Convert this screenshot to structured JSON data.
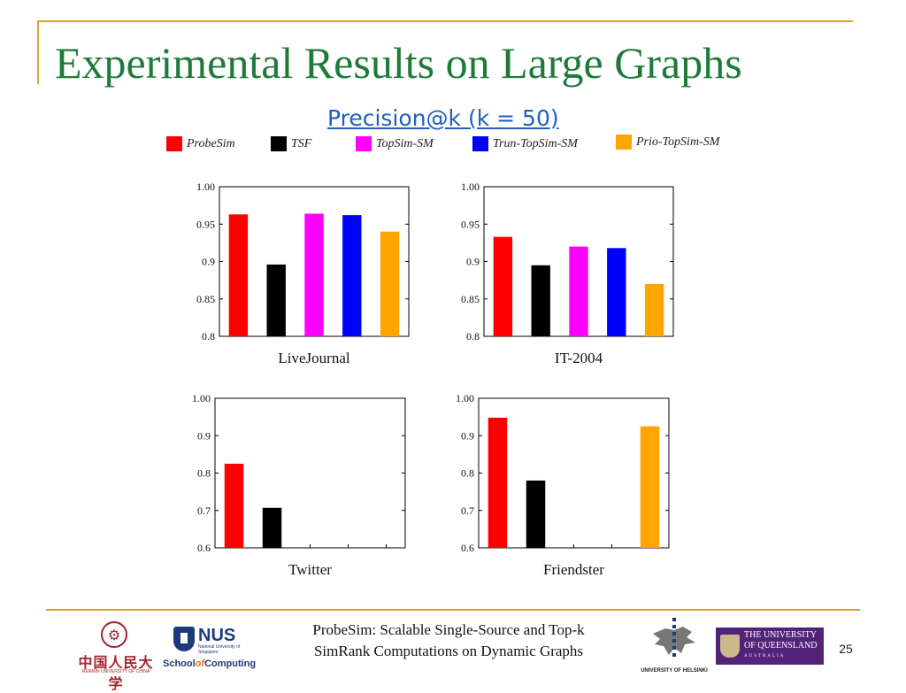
{
  "slide": {
    "title": "Experimental Results on Large Graphs",
    "subtitle": "Precision@k (k = 50)",
    "footer_line1": "ProbeSim: Scalable Single-Source and Top-k",
    "footer_line2": "SimRank Computations on Dynamic Graphs",
    "slide_number": "25"
  },
  "logos": {
    "renmin_cn": "中国人民大学",
    "renmin_en": "RENMIN UNIVERSITY OF CHINA",
    "nus_word": "NUS",
    "nus_small": "National University of Singapore",
    "nus_school_a": "School",
    "nus_school_of": "of",
    "nus_school_b": "Computing",
    "helsinki_caption": "UNIVERSITY OF HELSINKI",
    "uq_line1": "THE UNIVERSITY",
    "uq_line2": "OF QUEENSLAND",
    "uq_line3": "AUSTRALIA"
  },
  "colors": {
    "title": "#1f7a3a",
    "subtitle": "#1f5fbf",
    "gold_rule": "#d4a72c"
  },
  "chart_data": [
    {
      "type": "bar",
      "title": "LiveJournal",
      "categories": [
        "ProbeSim",
        "TSF",
        "TopSim-SM",
        "Trun-TopSim-SM",
        "Prio-TopSim-SM"
      ],
      "colors": [
        "#ff0000",
        "#000000",
        "#ff00ff",
        "#0000ff",
        "#ffa500"
      ],
      "values": [
        0.963,
        0.896,
        0.964,
        0.962,
        0.94
      ],
      "ylim": [
        0.8,
        1.0
      ],
      "yticks": [
        "0.8",
        "0.85",
        "0.9",
        "0.95",
        "1.00"
      ],
      "grid": false
    },
    {
      "type": "bar",
      "title": "IT-2004",
      "categories": [
        "ProbeSim",
        "TSF",
        "TopSim-SM",
        "Trun-TopSim-SM",
        "Prio-TopSim-SM"
      ],
      "colors": [
        "#ff0000",
        "#000000",
        "#ff00ff",
        "#0000ff",
        "#ffa500"
      ],
      "values": [
        0.933,
        0.895,
        0.92,
        0.918,
        0.87
      ],
      "ylim": [
        0.8,
        1.0
      ],
      "yticks": [
        "0.8",
        "0.85",
        "0.9",
        "0.95",
        "1.00"
      ],
      "grid": false
    },
    {
      "type": "bar",
      "title": "Twitter",
      "categories": [
        "ProbeSim",
        "TSF",
        "TopSim-SM",
        "Trun-TopSim-SM",
        "Prio-TopSim-SM"
      ],
      "colors": [
        "#ff0000",
        "#000000",
        "#ff00ff",
        "#0000ff",
        "#ffa500"
      ],
      "values": [
        0.825,
        0.707,
        null,
        null,
        null
      ],
      "ylim": [
        0.6,
        1.0
      ],
      "yticks": [
        "0.6",
        "0.7",
        "0.8",
        "0.9",
        "1.00"
      ],
      "grid": false
    },
    {
      "type": "bar",
      "title": "Friendster",
      "categories": [
        "ProbeSim",
        "TSF",
        "TopSim-SM",
        "Trun-TopSim-SM",
        "Prio-TopSim-SM"
      ],
      "colors": [
        "#ff0000",
        "#000000",
        "#ff00ff",
        "#0000ff",
        "#ffa500"
      ],
      "values": [
        0.948,
        0.78,
        null,
        null,
        0.925
      ],
      "ylim": [
        0.6,
        1.0
      ],
      "yticks": [
        "0.6",
        "0.7",
        "0.8",
        "0.9",
        "1.00"
      ],
      "grid": false
    }
  ],
  "legend": [
    {
      "label": "ProbeSim",
      "color": "#ff0000"
    },
    {
      "label": "TSF",
      "color": "#000000"
    },
    {
      "label": "TopSim-SM",
      "color": "#ff00ff"
    },
    {
      "label": "Trun-TopSim-SM",
      "color": "#0000ff"
    },
    {
      "label": "Prio-TopSim-SM",
      "color": "#ffa500"
    }
  ]
}
